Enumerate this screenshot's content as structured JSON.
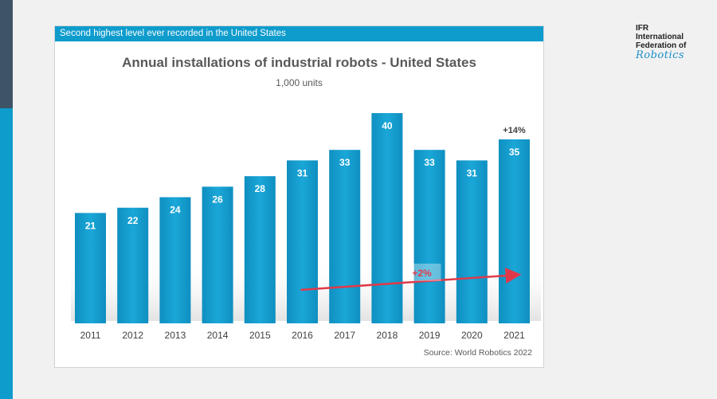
{
  "banner": "Second highest level ever recorded in the United States",
  "logo": {
    "line1": "IFR",
    "line2": "International",
    "line3": "Federation of",
    "script": "Robotics"
  },
  "source": "Source: World Robotics 2022",
  "colors": {
    "accent": "#0e9ccd",
    "bar": "#139dd0",
    "trend_arrow": "#e03a4a"
  },
  "chart_data": {
    "type": "bar",
    "title": "Annual installations of industrial robots - United States",
    "subtitle": "1,000 units",
    "categories": [
      "2011",
      "2012",
      "2013",
      "2014",
      "2015",
      "2016",
      "2017",
      "2018",
      "2019",
      "2020",
      "2021"
    ],
    "values": [
      21,
      22,
      24,
      26,
      28,
      31,
      33,
      40,
      33,
      31,
      35
    ],
    "ylim": [
      0,
      40
    ],
    "grid": false,
    "annotations": [
      {
        "label": "+14%",
        "category": "2021"
      },
      {
        "label": "+2%",
        "type": "trend-arrow",
        "from_category": "2016",
        "to_category": "2021"
      }
    ]
  }
}
